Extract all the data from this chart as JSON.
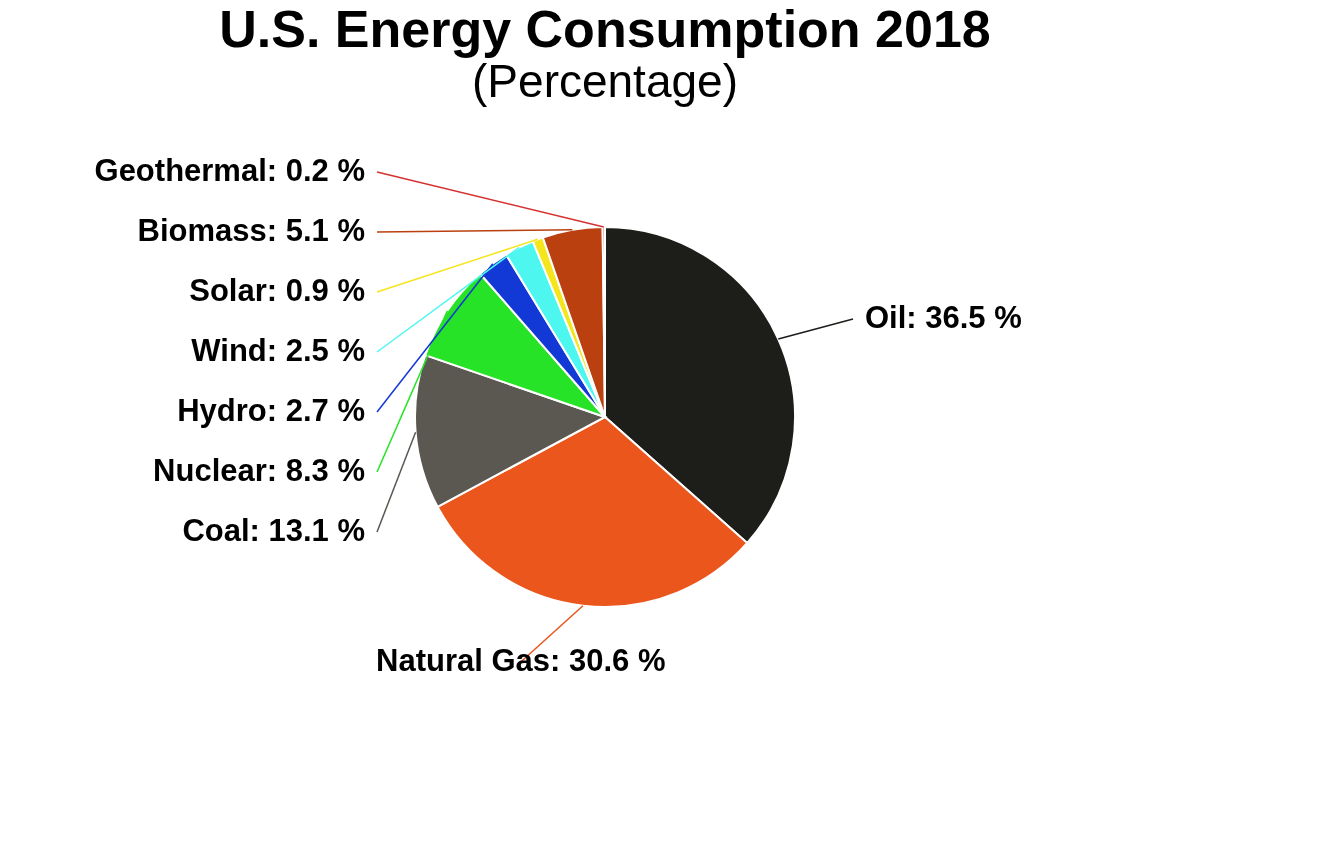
{
  "chart_data": {
    "type": "pie",
    "title": "U.S. Energy Consumption 2018",
    "subtitle": "(Percentage)",
    "categories": [
      "Oil",
      "Natural Gas",
      "Coal",
      "Nuclear",
      "Hydro",
      "Wind",
      "Solar",
      "Biomass",
      "Geothermal"
    ],
    "values": [
      36.5,
      30.6,
      13.1,
      8.3,
      2.7,
      2.5,
      0.9,
      5.1,
      0.2
    ],
    "colors": [
      "#1d1e1a",
      "#ea561c",
      "#5a5850",
      "#27e327",
      "#1238d6",
      "#4df7f0",
      "#f5e51c",
      "#bb4010",
      "#d63030"
    ],
    "value_labels": [
      "36.5 %",
      "30.6 %",
      "13.1 %",
      "8.3 %",
      "2.7 %",
      "2.5 %",
      "0.9 %",
      "5.1 %",
      "0.2 %"
    ]
  }
}
